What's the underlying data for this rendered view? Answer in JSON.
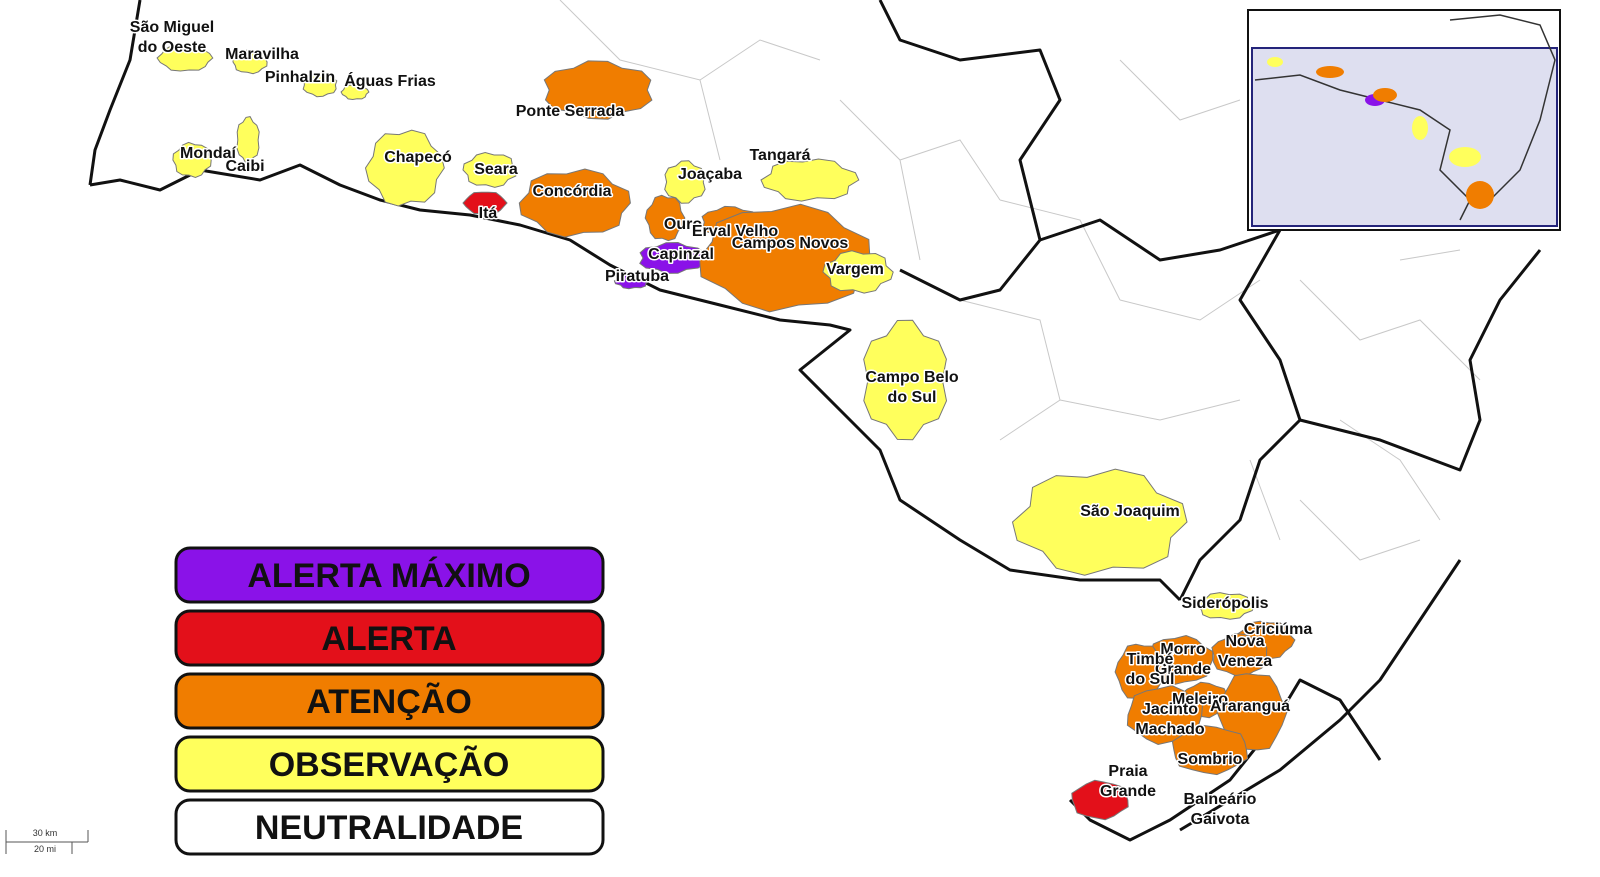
{
  "legend": [
    {
      "label": "ALERTA MÁXIMO",
      "color": "#8a12e8",
      "municipalities": [
        [
          "Capinzal"
        ],
        [
          "Piratuba"
        ]
      ]
    },
    {
      "label": "ALERTA",
      "color": "#e3101a",
      "municipalities": [
        [
          "Itá"
        ],
        [
          "Praia",
          "Grande"
        ]
      ]
    },
    {
      "label": "ATENÇÃO",
      "color": "#f07d00",
      "municipalities": [
        [
          "Ponte Serrada"
        ],
        [
          "Concórdia"
        ],
        [
          "Ouro"
        ],
        [
          "Erval Velho"
        ],
        [
          "Campos Novos"
        ],
        [
          "Criciúma"
        ],
        [
          "Nova",
          "Veneza"
        ],
        [
          "Morro",
          "Grande"
        ],
        [
          "Timbé",
          "do Sul"
        ],
        [
          "Meleiro"
        ],
        [
          "Jacinto",
          "Machado"
        ],
        [
          "Araranguá"
        ],
        [
          "Sombrio"
        ]
      ]
    },
    {
      "label": "OBSERVAÇÃO",
      "color": "#ffff5c",
      "municipalities": [
        [
          "São Miguel",
          "do Oeste"
        ],
        [
          "Maravilha"
        ],
        [
          "Pinhalzin"
        ],
        [
          "Águas Frias"
        ],
        [
          "Mondaí"
        ],
        [
          "Caibi"
        ],
        [
          "Chapecó"
        ],
        [
          "Seara"
        ],
        [
          "Joaçaba"
        ],
        [
          "Tangará"
        ],
        [
          "Vargem"
        ],
        [
          "Campo Belo",
          "do Sul"
        ],
        [
          "São Joaquim"
        ],
        [
          "Siderópolis"
        ]
      ]
    },
    {
      "label": "NEUTRALIDADE",
      "color": "#ffffff",
      "municipalities": [
        [
          "Balneário",
          "Gaivota"
        ]
      ]
    }
  ],
  "scale": {
    "km": "30 km",
    "mi": "20 mi"
  }
}
